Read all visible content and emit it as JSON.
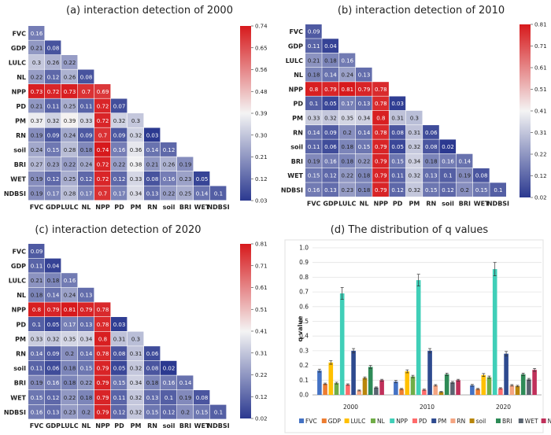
{
  "chart_data": [
    {
      "type": "heatmap",
      "title": "(a) interaction detection of 2000",
      "labels": [
        "FVC",
        "GDP",
        "LULC",
        "NL",
        "NPP",
        "PD",
        "PM",
        "RN",
        "soil",
        "BRI",
        "WET",
        "NDBSI"
      ],
      "values": [
        [
          0.16
        ],
        [
          0.21,
          0.08
        ],
        [
          0.3,
          0.26,
          0.22
        ],
        [
          0.22,
          0.12,
          0.26,
          0.08
        ],
        [
          0.73,
          0.72,
          0.73,
          0.7,
          0.69
        ],
        [
          0.21,
          0.11,
          0.25,
          0.11,
          0.72,
          0.07
        ],
        [
          0.37,
          0.32,
          0.39,
          0.33,
          0.72,
          0.32,
          0.3
        ],
        [
          0.19,
          0.09,
          0.24,
          0.09,
          0.7,
          0.09,
          0.32,
          0.03
        ],
        [
          0.24,
          0.15,
          0.28,
          0.18,
          0.74,
          0.16,
          0.36,
          0.14,
          0.12
        ],
        [
          0.27,
          0.23,
          0.22,
          0.24,
          0.72,
          0.22,
          0.38,
          0.21,
          0.26,
          0.19
        ],
        [
          0.19,
          0.12,
          0.25,
          0.12,
          0.72,
          0.12,
          0.33,
          0.08,
          0.16,
          0.23,
          0.05
        ],
        [
          0.19,
          0.17,
          0.28,
          0.17,
          0.7,
          0.17,
          0.34,
          0.13,
          0.22,
          0.25,
          0.14,
          0.1
        ]
      ],
      "colorbar": {
        "min": 0.03,
        "max": 0.74,
        "ticks": [
          "0.74",
          "0.65",
          "0.56",
          "0.48",
          "0.39",
          "0.30",
          "0.21",
          "0.12",
          "0.03"
        ]
      }
    },
    {
      "type": "heatmap",
      "title": "(b) interaction detection of 2010",
      "labels": [
        "FVC",
        "GDP",
        "LULC",
        "NL",
        "NPP",
        "PD",
        "PM",
        "RN",
        "soil",
        "BRI",
        "WET",
        "NDBSI"
      ],
      "values": [
        [
          0.09
        ],
        [
          0.11,
          0.04
        ],
        [
          0.21,
          0.18,
          0.16
        ],
        [
          0.18,
          0.14,
          0.24,
          0.13
        ],
        [
          0.8,
          0.79,
          0.81,
          0.79,
          0.78
        ],
        [
          0.1,
          0.05,
          0.17,
          0.13,
          0.78,
          0.03
        ],
        [
          0.33,
          0.32,
          0.35,
          0.34,
          0.8,
          0.31,
          0.3
        ],
        [
          0.14,
          0.09,
          0.2,
          0.14,
          0.78,
          0.08,
          0.31,
          0.06
        ],
        [
          0.11,
          0.06,
          0.18,
          0.15,
          0.79,
          0.05,
          0.32,
          0.08,
          0.02
        ],
        [
          0.19,
          0.16,
          0.18,
          0.22,
          0.79,
          0.15,
          0.34,
          0.18,
          0.16,
          0.14
        ],
        [
          0.15,
          0.12,
          0.22,
          0.18,
          0.79,
          0.11,
          0.32,
          0.13,
          0.1,
          0.19,
          0.08
        ],
        [
          0.16,
          0.13,
          0.23,
          0.18,
          0.79,
          0.12,
          0.32,
          0.15,
          0.12,
          0.2,
          0.15,
          0.1
        ]
      ],
      "colorbar": {
        "min": 0.02,
        "max": 0.81,
        "ticks": [
          "0.81",
          "0.71",
          "0.61",
          "0.51",
          "0.41",
          "0.31",
          "0.22",
          "0.12",
          "0.02"
        ]
      }
    },
    {
      "type": "heatmap",
      "title": "(c) interaction detection of 2020",
      "labels": [
        "FVC",
        "GDP",
        "LULC",
        "NL",
        "NPP",
        "PD",
        "PM",
        "RN",
        "soil",
        "BRI",
        "WET",
        "NDBSI"
      ],
      "values": [
        [
          0.09
        ],
        [
          0.11,
          0.04
        ],
        [
          0.21,
          0.18,
          0.16
        ],
        [
          0.18,
          0.14,
          0.24,
          0.13
        ],
        [
          0.8,
          0.79,
          0.81,
          0.79,
          0.78
        ],
        [
          0.1,
          0.05,
          0.17,
          0.13,
          0.78,
          0.03
        ],
        [
          0.33,
          0.32,
          0.35,
          0.34,
          0.8,
          0.31,
          0.3
        ],
        [
          0.14,
          0.09,
          0.2,
          0.14,
          0.78,
          0.08,
          0.31,
          0.06
        ],
        [
          0.11,
          0.06,
          0.18,
          0.15,
          0.79,
          0.05,
          0.32,
          0.08,
          0.02
        ],
        [
          0.19,
          0.16,
          0.18,
          0.22,
          0.79,
          0.15,
          0.34,
          0.18,
          0.16,
          0.14
        ],
        [
          0.15,
          0.12,
          0.22,
          0.18,
          0.79,
          0.11,
          0.32,
          0.13,
          0.1,
          0.19,
          0.08
        ],
        [
          0.16,
          0.13,
          0.23,
          0.2,
          0.79,
          0.12,
          0.32,
          0.15,
          0.12,
          0.2,
          0.15,
          0.1
        ]
      ],
      "colorbar": {
        "min": 0.02,
        "max": 0.81,
        "ticks": [
          "0.81",
          "0.71",
          "0.61",
          "0.51",
          "0.41",
          "0.31",
          "0.22",
          "0.12",
          "0.02"
        ]
      }
    },
    {
      "type": "bar",
      "title": "(d) The distribution of q values",
      "ylabel": "q value",
      "categories": [
        "2000",
        "2010",
        "2020"
      ],
      "ylim": [
        0,
        1.0
      ],
      "yticks": [
        "0.0",
        "0.1",
        "0.2",
        "0.3",
        "0.4",
        "0.5",
        "0.6",
        "0.7",
        "0.8",
        "0.9",
        "1.0"
      ],
      "series": [
        {
          "name": "FVC",
          "color": "#4472c4",
          "values": [
            0.165,
            0.09,
            0.065
          ],
          "errors": [
            0.01,
            0.008,
            0.006
          ]
        },
        {
          "name": "GDP",
          "color": "#ed7d31",
          "values": [
            0.075,
            0.04,
            0.04
          ],
          "errors": [
            0.005,
            0.004,
            0.004
          ]
        },
        {
          "name": "LULC",
          "color": "#ffc000",
          "values": [
            0.22,
            0.16,
            0.135
          ],
          "errors": [
            0.012,
            0.01,
            0.01
          ]
        },
        {
          "name": "NL",
          "color": "#70ad47",
          "values": [
            0.08,
            0.125,
            0.12
          ],
          "errors": [
            0.006,
            0.008,
            0.008
          ]
        },
        {
          "name": "NPP",
          "color": "#40cfb8",
          "values": [
            0.69,
            0.78,
            0.855
          ],
          "errors": [
            0.04,
            0.04,
            0.045
          ]
        },
        {
          "name": "PD",
          "color": "#ff6b6b",
          "values": [
            0.07,
            0.035,
            0.045
          ],
          "errors": [
            0.005,
            0.004,
            0.004
          ]
        },
        {
          "name": "PM",
          "color": "#2e4a8f",
          "values": [
            0.3,
            0.3,
            0.28
          ],
          "errors": [
            0.015,
            0.015,
            0.015
          ]
        },
        {
          "name": "RN",
          "color": "#f4a582",
          "values": [
            0.03,
            0.065,
            0.065
          ],
          "errors": [
            0.003,
            0.005,
            0.005
          ]
        },
        {
          "name": "soil",
          "color": "#b8860b",
          "values": [
            0.115,
            0.02,
            0.06
          ],
          "errors": [
            0.007,
            0.003,
            0.005
          ]
        },
        {
          "name": "BRI",
          "color": "#2e8b57",
          "values": [
            0.19,
            0.14,
            0.14
          ],
          "errors": [
            0.01,
            0.008,
            0.008
          ]
        },
        {
          "name": "WET",
          "color": "#5a6470",
          "values": [
            0.05,
            0.085,
            0.105
          ],
          "errors": [
            0.004,
            0.006,
            0.007
          ]
        },
        {
          "name": "NDBSI",
          "color": "#c0305a",
          "values": [
            0.1,
            0.1,
            0.17
          ],
          "errors": [
            0.006,
            0.006,
            0.01
          ]
        }
      ]
    }
  ]
}
